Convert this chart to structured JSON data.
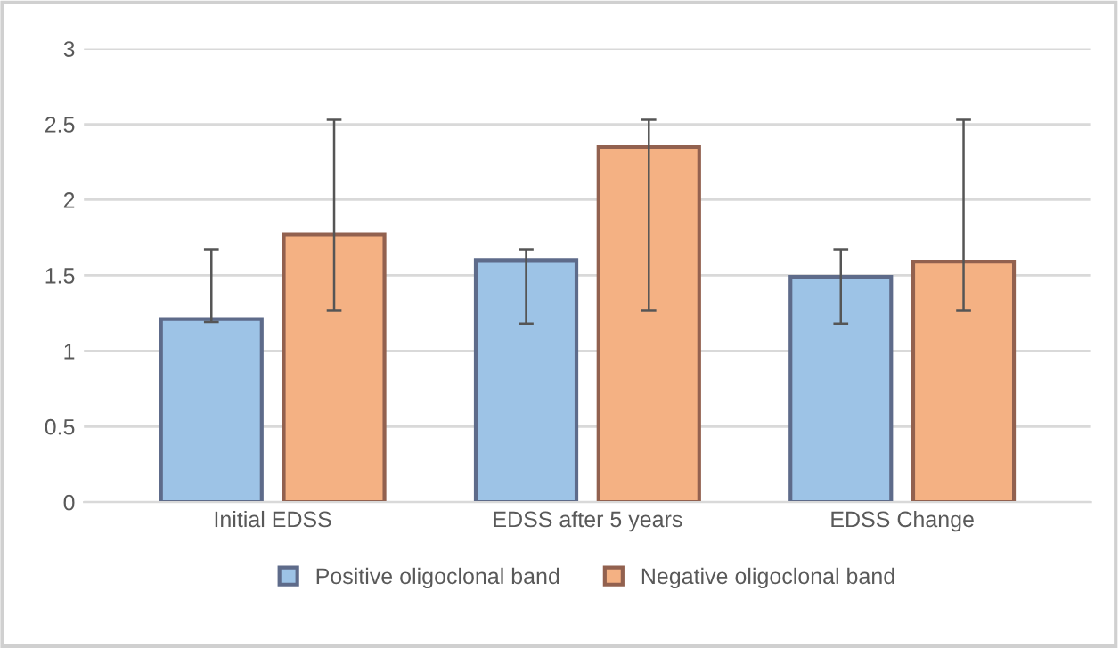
{
  "chart_data": {
    "type": "bar",
    "categories": [
      "Initial EDSS",
      "EDSS after 5 years",
      "EDSS Change"
    ],
    "series": [
      {
        "name": "Positive oligoclonal band",
        "color": "#9dc3e6",
        "values": [
          1.21,
          1.6,
          1.49
        ],
        "errors": [
          [
            1.19,
            1.67
          ],
          [
            1.18,
            1.67
          ],
          [
            1.18,
            1.67
          ]
        ]
      },
      {
        "name": "Negative oligoclonal band",
        "color": "#f4b183",
        "values": [
          1.77,
          2.35,
          1.59
        ],
        "errors": [
          [
            1.27,
            2.53
          ],
          [
            1.27,
            2.53
          ],
          [
            1.27,
            2.53
          ]
        ]
      }
    ],
    "ylim": [
      0,
      3
    ],
    "yticks": [
      0,
      0.5,
      1,
      1.5,
      2,
      2.5,
      3
    ],
    "grid": "y",
    "legend": "bottom"
  }
}
